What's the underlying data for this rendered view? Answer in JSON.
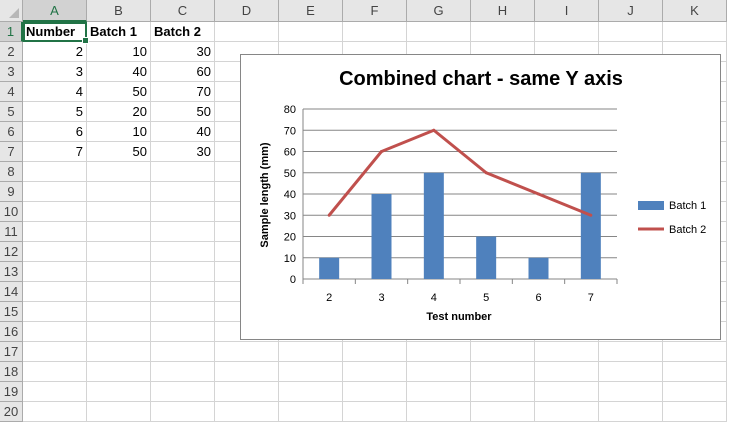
{
  "sheet": {
    "columns": [
      "A",
      "B",
      "C",
      "D",
      "E",
      "F",
      "G",
      "H",
      "I",
      "J",
      "K"
    ],
    "rows": [
      "1",
      "2",
      "3",
      "4",
      "5",
      "6",
      "7",
      "8",
      "9",
      "10",
      "11",
      "12",
      "13",
      "14",
      "15",
      "16",
      "17",
      "18",
      "19",
      "20"
    ],
    "headers": [
      "Number",
      "Batch 1",
      "Batch 2"
    ],
    "data": [
      [
        2,
        10,
        30
      ],
      [
        3,
        40,
        60
      ],
      [
        4,
        50,
        70
      ],
      [
        5,
        20,
        50
      ],
      [
        6,
        10,
        40
      ],
      [
        7,
        50,
        30
      ]
    ]
  },
  "chart_data": {
    "type": "bar",
    "title": "Combined chart - same Y axis",
    "xlabel": "Test number",
    "ylabel": "Sample length (mm)",
    "categories": [
      "2",
      "3",
      "4",
      "5",
      "6",
      "7"
    ],
    "ylim": [
      0,
      80
    ],
    "yticks": [
      0,
      10,
      20,
      30,
      40,
      50,
      60,
      70,
      80
    ],
    "grid": true,
    "legend": "right",
    "series": [
      {
        "name": "Batch 1",
        "type": "bar",
        "color": "#4f81bd",
        "values": [
          10,
          40,
          50,
          20,
          10,
          50
        ]
      },
      {
        "name": "Batch 2",
        "type": "line",
        "color": "#c0504d",
        "values": [
          30,
          60,
          70,
          50,
          40,
          30
        ]
      }
    ]
  }
}
